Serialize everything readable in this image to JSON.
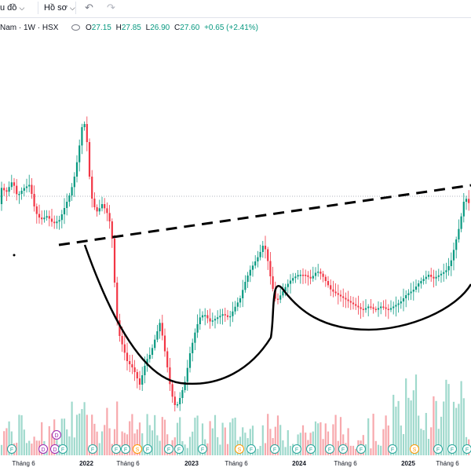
{
  "toolbar": {
    "chart_menu": "u đồ",
    "profile_menu": "Hồ sơ"
  },
  "legend": {
    "symbol": "Nam · 1W · HSX",
    "open_label": "O",
    "open": "27.15",
    "high_label": "H",
    "high": "27.85",
    "low_label": "L",
    "low": "26.90",
    "close_label": "C",
    "close": "27.60",
    "change": "+0.65 (+2.41%)"
  },
  "colors": {
    "up": "#089981",
    "down": "#f23645",
    "up_vol": "#9fd9cc",
    "down_vol": "#f7a9ad"
  },
  "axis": {
    "labels": [
      "Tháng 6",
      "2022",
      "Tháng 6",
      "2023",
      "Tháng 6",
      "2024",
      "Tháng 6",
      "2025",
      "Tháng 6"
    ]
  },
  "event_markers": {
    "dividend_letter": "D",
    "financial_letter": "F",
    "split_letter": "S",
    "row_top": [
      "D"
    ],
    "row_bottom": [
      "F",
      "D",
      "D",
      "F",
      "F",
      "F",
      "F",
      "S",
      "F",
      "F",
      "F",
      "F",
      "S",
      "F",
      "F",
      "F",
      "F",
      "F",
      "F",
      "F",
      "F",
      "S",
      "F",
      "F",
      "F"
    ]
  },
  "chart_data": {
    "type": "candlestick",
    "interval": "1W",
    "exchange": "HSX",
    "last_bar": {
      "open": 27.15,
      "high": 27.85,
      "low": 26.9,
      "close": 27.6,
      "change": 0.65,
      "change_pct": 2.41
    },
    "x_ticks": [
      "Tháng 6",
      "2022",
      "Tháng 6",
      "2023",
      "Tháng 6",
      "2024",
      "Tháng 6",
      "2025",
      "Tháng 6"
    ],
    "price_path": [
      [
        0,
        0.355
      ],
      [
        8,
        0.37
      ],
      [
        16,
        0.34
      ],
      [
        22,
        0.38
      ],
      [
        30,
        0.36
      ],
      [
        38,
        0.35
      ],
      [
        45,
        0.42
      ],
      [
        52,
        0.44
      ],
      [
        60,
        0.43
      ],
      [
        68,
        0.45
      ],
      [
        76,
        0.44
      ],
      [
        84,
        0.4
      ],
      [
        90,
        0.37
      ],
      [
        96,
        0.32
      ],
      [
        102,
        0.24
      ],
      [
        106,
        0.18
      ],
      [
        110,
        0.22
      ],
      [
        114,
        0.33
      ],
      [
        118,
        0.4
      ],
      [
        124,
        0.42
      ],
      [
        130,
        0.4
      ],
      [
        136,
        0.42
      ],
      [
        142,
        0.46
      ],
      [
        146,
        0.6
      ],
      [
        150,
        0.72
      ],
      [
        156,
        0.76
      ],
      [
        162,
        0.8
      ],
      [
        170,
        0.82
      ],
      [
        178,
        0.86
      ],
      [
        186,
        0.8
      ],
      [
        192,
        0.78
      ],
      [
        198,
        0.74
      ],
      [
        204,
        0.7
      ],
      [
        208,
        0.75
      ],
      [
        212,
        0.8
      ],
      [
        218,
        0.88
      ],
      [
        224,
        0.92
      ],
      [
        230,
        0.89
      ],
      [
        236,
        0.85
      ],
      [
        242,
        0.78
      ],
      [
        248,
        0.73
      ],
      [
        254,
        0.69
      ],
      [
        260,
        0.68
      ],
      [
        268,
        0.7
      ],
      [
        276,
        0.69
      ],
      [
        284,
        0.68
      ],
      [
        292,
        0.69
      ],
      [
        300,
        0.66
      ],
      [
        306,
        0.64
      ],
      [
        312,
        0.6
      ],
      [
        318,
        0.57
      ],
      [
        324,
        0.55
      ],
      [
        330,
        0.53
      ],
      [
        336,
        0.5
      ],
      [
        340,
        0.53
      ],
      [
        344,
        0.58
      ],
      [
        348,
        0.62
      ],
      [
        352,
        0.65
      ],
      [
        358,
        0.63
      ],
      [
        364,
        0.61
      ],
      [
        372,
        0.59
      ],
      [
        380,
        0.58
      ],
      [
        388,
        0.58
      ],
      [
        396,
        0.59
      ],
      [
        404,
        0.57
      ],
      [
        410,
        0.58
      ],
      [
        416,
        0.6
      ],
      [
        422,
        0.62
      ],
      [
        430,
        0.63
      ],
      [
        438,
        0.64
      ],
      [
        446,
        0.65
      ],
      [
        454,
        0.66
      ],
      [
        462,
        0.67
      ],
      [
        470,
        0.66
      ],
      [
        478,
        0.67
      ],
      [
        486,
        0.66
      ],
      [
        494,
        0.67
      ],
      [
        502,
        0.66
      ],
      [
        510,
        0.65
      ],
      [
        518,
        0.63
      ],
      [
        526,
        0.62
      ],
      [
        534,
        0.6
      ],
      [
        540,
        0.59
      ],
      [
        546,
        0.58
      ],
      [
        552,
        0.59
      ],
      [
        560,
        0.58
      ],
      [
        568,
        0.57
      ],
      [
        574,
        0.55
      ],
      [
        580,
        0.5
      ],
      [
        586,
        0.45
      ],
      [
        592,
        0.38
      ],
      [
        598,
        0.4
      ]
    ]
  }
}
